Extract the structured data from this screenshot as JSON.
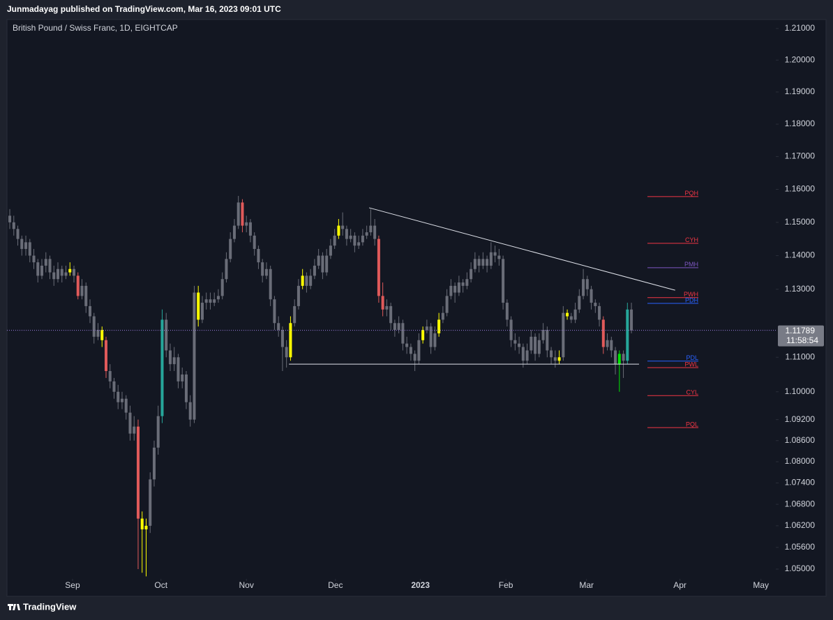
{
  "header": {
    "published": "Junmadayag published on TradingView.com, Mar 16, 2023 09:01 UTC"
  },
  "footer": {
    "brand": "TradingView"
  },
  "chart_data": {
    "type": "candlestick",
    "title": "British Pound / Swiss Franc, 1D, EIGHTCAP",
    "log_scale": true,
    "ylim": [
      1.0477,
      1.2124
    ],
    "yticks": [
      {
        "value": 1.21,
        "label": "1.21000"
      },
      {
        "value": 1.2,
        "label": "1.20000"
      },
      {
        "value": 1.19,
        "label": "1.19000"
      },
      {
        "value": 1.18,
        "label": "1.18000"
      },
      {
        "value": 1.17,
        "label": "1.17000"
      },
      {
        "value": 1.16,
        "label": "1.16000"
      },
      {
        "value": 1.15,
        "label": "1.15000"
      },
      {
        "value": 1.14,
        "label": "1.14000"
      },
      {
        "value": 1.13,
        "label": "1.13000"
      },
      {
        "value": 1.11,
        "label": "1.11000"
      },
      {
        "value": 1.1,
        "label": "1.10000"
      },
      {
        "value": 1.092,
        "label": "1.09200"
      },
      {
        "value": 1.086,
        "label": "1.08600"
      },
      {
        "value": 1.08,
        "label": "1.08000"
      },
      {
        "value": 1.074,
        "label": "1.07400"
      },
      {
        "value": 1.068,
        "label": "1.06800"
      },
      {
        "value": 1.062,
        "label": "1.06200"
      },
      {
        "value": 1.056,
        "label": "1.05600"
      },
      {
        "value": 1.05,
        "label": "1.05000"
      }
    ],
    "xlim": [
      -0.7,
      191
    ],
    "xticks": [
      {
        "value": 15.65,
        "label": "Sep"
      },
      {
        "value": 37.7,
        "label": "Oct"
      },
      {
        "value": 59,
        "label": "Nov"
      },
      {
        "value": 81.2,
        "label": "Dec"
      },
      {
        "value": 102.4,
        "label": "2023"
      },
      {
        "value": 123.7,
        "label": "Feb"
      },
      {
        "value": 143.8,
        "label": "Mar"
      },
      {
        "value": 167.1,
        "label": "Apr"
      },
      {
        "value": 187.3,
        "label": "May"
      }
    ],
    "last_price": 1.11789,
    "last_price_color": "#9c7de0",
    "countdown": "11:58:54",
    "ohlc": [
      [
        1.152,
        1.154,
        1.148,
        1.15
      ],
      [
        1.15,
        1.152,
        1.146,
        1.148
      ],
      [
        1.148,
        1.149,
        1.143,
        1.145
      ],
      [
        1.145,
        1.146,
        1.14,
        1.142
      ],
      [
        1.142,
        1.146,
        1.14,
        1.144
      ],
      [
        1.144,
        1.145,
        1.138,
        1.14
      ],
      [
        1.14,
        1.142,
        1.136,
        1.138
      ],
      [
        1.138,
        1.139,
        1.132,
        1.134
      ],
      [
        1.134,
        1.139,
        1.133,
        1.137
      ],
      [
        1.137,
        1.141,
        1.135,
        1.139
      ],
      [
        1.139,
        1.14,
        1.133,
        1.135
      ],
      [
        1.135,
        1.137,
        1.131,
        1.133
      ],
      [
        1.133,
        1.138,
        1.132,
        1.136
      ],
      [
        1.136,
        1.137,
        1.132,
        1.134
      ],
      [
        1.134,
        1.137,
        1.133,
        1.135
      ],
      [
        1.135,
        1.138,
        1.134,
        1.136
      ],
      [
        1.136,
        1.137,
        1.132,
        1.134
      ],
      [
        1.134,
        1.135,
        1.127,
        1.128
      ],
      [
        1.128,
        1.133,
        1.127,
        1.131
      ],
      [
        1.131,
        1.132,
        1.123,
        1.125
      ],
      [
        1.125,
        1.127,
        1.12,
        1.122
      ],
      [
        1.122,
        1.123,
        1.114,
        1.116
      ],
      [
        1.116,
        1.12,
        1.115,
        1.118
      ],
      [
        1.118,
        1.119,
        1.113,
        1.115
      ],
      [
        1.115,
        1.116,
        1.104,
        1.106
      ],
      [
        1.106,
        1.108,
        1.101,
        1.103
      ],
      [
        1.103,
        1.104,
        1.098,
        1.1
      ],
      [
        1.1,
        1.102,
        1.095,
        1.097
      ],
      [
        1.097,
        1.1,
        1.095,
        1.098
      ],
      [
        1.098,
        1.099,
        1.092,
        1.094
      ],
      [
        1.094,
        1.096,
        1.086,
        1.088
      ],
      [
        1.088,
        1.093,
        1.086,
        1.09
      ],
      [
        1.09,
        1.092,
        1.05,
        1.064
      ],
      [
        1.064,
        1.066,
        1.049,
        1.061
      ],
      [
        1.061,
        1.064,
        1.048,
        1.062
      ],
      [
        1.062,
        1.077,
        1.06,
        1.075
      ],
      [
        1.075,
        1.086,
        1.073,
        1.084
      ],
      [
        1.084,
        1.096,
        1.082,
        1.093
      ],
      [
        1.093,
        1.124,
        1.091,
        1.121
      ],
      [
        1.121,
        1.123,
        1.11,
        1.112
      ],
      [
        1.112,
        1.114,
        1.106,
        1.108
      ],
      [
        1.108,
        1.113,
        1.106,
        1.11
      ],
      [
        1.11,
        1.111,
        1.101,
        1.103
      ],
      [
        1.103,
        1.107,
        1.101,
        1.105
      ],
      [
        1.105,
        1.106,
        1.095,
        1.097
      ],
      [
        1.097,
        1.099,
        1.09,
        1.092
      ],
      [
        1.092,
        1.131,
        1.091,
        1.129
      ],
      [
        1.129,
        1.131,
        1.119,
        1.121
      ],
      [
        1.121,
        1.128,
        1.12,
        1.126
      ],
      [
        1.126,
        1.129,
        1.124,
        1.127
      ],
      [
        1.127,
        1.129,
        1.124,
        1.126
      ],
      [
        1.126,
        1.129,
        1.125,
        1.127
      ],
      [
        1.127,
        1.13,
        1.126,
        1.128
      ],
      [
        1.128,
        1.135,
        1.127,
        1.133
      ],
      [
        1.133,
        1.141,
        1.132,
        1.139
      ],
      [
        1.139,
        1.147,
        1.138,
        1.145
      ],
      [
        1.145,
        1.151,
        1.144,
        1.149
      ],
      [
        1.149,
        1.158,
        1.148,
        1.156
      ],
      [
        1.156,
        1.157,
        1.147,
        1.149
      ],
      [
        1.149,
        1.152,
        1.147,
        1.15
      ],
      [
        1.15,
        1.151,
        1.144,
        1.146
      ],
      [
        1.146,
        1.147,
        1.14,
        1.142
      ],
      [
        1.142,
        1.143,
        1.136,
        1.138
      ],
      [
        1.138,
        1.139,
        1.132,
        1.134
      ],
      [
        1.134,
        1.138,
        1.133,
        1.136
      ],
      [
        1.136,
        1.137,
        1.125,
        1.127
      ],
      [
        1.127,
        1.128,
        1.118,
        1.12
      ],
      [
        1.12,
        1.122,
        1.116,
        1.118
      ],
      [
        1.118,
        1.119,
        1.106,
        1.113
      ],
      [
        1.113,
        1.115,
        1.107,
        1.11
      ],
      [
        1.11,
        1.122,
        1.109,
        1.12
      ],
      [
        1.12,
        1.127,
        1.119,
        1.125
      ],
      [
        1.125,
        1.133,
        1.124,
        1.131
      ],
      [
        1.131,
        1.136,
        1.13,
        1.134
      ],
      [
        1.134,
        1.135,
        1.129,
        1.131
      ],
      [
        1.131,
        1.136,
        1.13,
        1.134
      ],
      [
        1.134,
        1.139,
        1.133,
        1.137
      ],
      [
        1.137,
        1.142,
        1.136,
        1.14
      ],
      [
        1.14,
        1.141,
        1.133,
        1.135
      ],
      [
        1.135,
        1.142,
        1.134,
        1.14
      ],
      [
        1.14,
        1.145,
        1.139,
        1.143
      ],
      [
        1.143,
        1.148,
        1.142,
        1.146
      ],
      [
        1.146,
        1.151,
        1.145,
        1.149
      ],
      [
        1.149,
        1.153,
        1.146,
        1.148
      ],
      [
        1.148,
        1.149,
        1.143,
        1.145
      ],
      [
        1.145,
        1.148,
        1.144,
        1.146
      ],
      [
        1.146,
        1.147,
        1.141,
        1.143
      ],
      [
        1.143,
        1.146,
        1.142,
        1.144
      ],
      [
        1.144,
        1.148,
        1.143,
        1.146
      ],
      [
        1.146,
        1.149,
        1.145,
        1.147
      ],
      [
        1.147,
        1.154,
        1.146,
        1.149
      ],
      [
        1.149,
        1.151,
        1.143,
        1.145
      ],
      [
        1.145,
        1.146,
        1.126,
        1.128
      ],
      [
        1.128,
        1.132,
        1.122,
        1.124
      ],
      [
        1.124,
        1.127,
        1.122,
        1.125
      ],
      [
        1.125,
        1.126,
        1.118,
        1.12
      ],
      [
        1.12,
        1.121,
        1.116,
        1.118
      ],
      [
        1.118,
        1.122,
        1.117,
        1.12
      ],
      [
        1.12,
        1.121,
        1.112,
        1.114
      ],
      [
        1.114,
        1.116,
        1.111,
        1.113
      ],
      [
        1.113,
        1.114,
        1.109,
        1.111
      ],
      [
        1.111,
        1.112,
        1.106,
        1.109
      ],
      [
        1.109,
        1.117,
        1.108,
        1.115
      ],
      [
        1.115,
        1.119,
        1.114,
        1.118
      ],
      [
        1.118,
        1.121,
        1.117,
        1.119
      ],
      [
        1.119,
        1.12,
        1.111,
        1.113
      ],
      [
        1.113,
        1.119,
        1.112,
        1.117
      ],
      [
        1.117,
        1.123,
        1.116,
        1.121
      ],
      [
        1.121,
        1.125,
        1.12,
        1.123
      ],
      [
        1.123,
        1.13,
        1.122,
        1.128
      ],
      [
        1.128,
        1.133,
        1.127,
        1.131
      ],
      [
        1.131,
        1.132,
        1.126,
        1.129
      ],
      [
        1.129,
        1.134,
        1.128,
        1.132
      ],
      [
        1.132,
        1.133,
        1.129,
        1.131
      ],
      [
        1.131,
        1.135,
        1.13,
        1.133
      ],
      [
        1.133,
        1.138,
        1.132,
        1.136
      ],
      [
        1.136,
        1.141,
        1.135,
        1.139
      ],
      [
        1.139,
        1.14,
        1.135,
        1.137
      ],
      [
        1.137,
        1.141,
        1.136,
        1.139
      ],
      [
        1.139,
        1.14,
        1.135,
        1.137
      ],
      [
        1.137,
        1.144,
        1.136,
        1.141
      ],
      [
        1.141,
        1.143,
        1.138,
        1.14
      ],
      [
        1.14,
        1.142,
        1.137,
        1.139
      ],
      [
        1.139,
        1.14,
        1.124,
        1.126
      ],
      [
        1.126,
        1.127,
        1.119,
        1.121
      ],
      [
        1.121,
        1.122,
        1.113,
        1.115
      ],
      [
        1.115,
        1.117,
        1.112,
        1.114
      ],
      [
        1.114,
        1.116,
        1.111,
        1.113
      ],
      [
        1.113,
        1.114,
        1.107,
        1.109
      ],
      [
        1.109,
        1.114,
        1.108,
        1.112
      ],
      [
        1.112,
        1.118,
        1.111,
        1.116
      ],
      [
        1.116,
        1.117,
        1.109,
        1.111
      ],
      [
        1.111,
        1.117,
        1.11,
        1.115
      ],
      [
        1.115,
        1.12,
        1.114,
        1.118
      ],
      [
        1.118,
        1.119,
        1.11,
        1.112
      ],
      [
        1.112,
        1.113,
        1.108,
        1.11
      ],
      [
        1.11,
        1.112,
        1.107,
        1.109
      ],
      [
        1.109,
        1.112,
        1.108,
        1.11
      ],
      [
        1.11,
        1.125,
        1.109,
        1.123
      ],
      [
        1.123,
        1.124,
        1.121,
        1.122
      ],
      [
        1.122,
        1.123,
        1.12,
        1.121
      ],
      [
        1.121,
        1.126,
        1.12,
        1.124
      ],
      [
        1.124,
        1.13,
        1.123,
        1.128
      ],
      [
        1.128,
        1.136,
        1.127,
        1.133
      ],
      [
        1.133,
        1.134,
        1.128,
        1.13
      ],
      [
        1.13,
        1.131,
        1.124,
        1.126
      ],
      [
        1.126,
        1.127,
        1.123,
        1.125
      ],
      [
        1.125,
        1.126,
        1.119,
        1.121
      ],
      [
        1.121,
        1.122,
        1.111,
        1.113
      ],
      [
        1.113,
        1.117,
        1.112,
        1.115
      ],
      [
        1.115,
        1.116,
        1.11,
        1.112
      ],
      [
        1.112,
        1.113,
        1.105,
        1.108
      ],
      [
        1.108,
        1.112,
        1.1,
        1.111
      ],
      [
        1.111,
        1.112,
        1.104,
        1.109
      ],
      [
        1.109,
        1.126,
        1.108,
        1.124
      ],
      [
        1.124,
        1.126,
        1.117,
        1.11789
      ]
    ],
    "colors": [
      "#6a6d78",
      "#6a6d78",
      "#6a6d78",
      "#6a6d78",
      "#6a6d78",
      "#6a6d78",
      "#6a6d78",
      "#6a6d78",
      "#6a6d78",
      "#6a6d78",
      "#6a6d78",
      "#6a6d78",
      "#6a6d78",
      "#6a6d78",
      "#6a6d78",
      "#ffff00",
      "#6a6d78",
      "#e05a5a",
      "#6a6d78",
      "#6a6d78",
      "#6a6d78",
      "#6a6d78",
      "#6a6d78",
      "#ffff00",
      "#e05a5a",
      "#6a6d78",
      "#6a6d78",
      "#6a6d78",
      "#6a6d78",
      "#6a6d78",
      "#6a6d78",
      "#6a6d78",
      "#e05a5a",
      "#ffff00",
      "#ffff00",
      "#6a6d78",
      "#6a6d78",
      "#6a6d78",
      "#26a69a",
      "#6a6d78",
      "#6a6d78",
      "#6a6d78",
      "#6a6d78",
      "#6a6d78",
      "#6a6d78",
      "#6a6d78",
      "#6a6d78",
      "#ffff00",
      "#6a6d78",
      "#6a6d78",
      "#6a6d78",
      "#6a6d78",
      "#6a6d78",
      "#6a6d78",
      "#6a6d78",
      "#6a6d78",
      "#6a6d78",
      "#6a6d78",
      "#e05a5a",
      "#6a6d78",
      "#6a6d78",
      "#6a6d78",
      "#6a6d78",
      "#6a6d78",
      "#6a6d78",
      "#6a6d78",
      "#6a6d78",
      "#6a6d78",
      "#6a6d78",
      "#6a6d78",
      "#ffff00",
      "#6a6d78",
      "#6a6d78",
      "#ffff00",
      "#6a6d78",
      "#6a6d78",
      "#6a6d78",
      "#6a6d78",
      "#6a6d78",
      "#6a6d78",
      "#6a6d78",
      "#6a6d78",
      "#ffff00",
      "#6a6d78",
      "#6a6d78",
      "#6a6d78",
      "#6a6d78",
      "#6a6d78",
      "#6a6d78",
      "#6a6d78",
      "#6a6d78",
      "#6a6d78",
      "#e05a5a",
      "#e05a5a",
      "#6a6d78",
      "#6a6d78",
      "#6a6d78",
      "#6a6d78",
      "#6a6d78",
      "#6a6d78",
      "#6a6d78",
      "#6a6d78",
      "#6a6d78",
      "#ffff00",
      "#6a6d78",
      "#6a6d78",
      "#6a6d78",
      "#ffff00",
      "#6a6d78",
      "#6a6d78",
      "#6a6d78",
      "#6a6d78",
      "#6a6d78",
      "#6a6d78",
      "#6a6d78",
      "#6a6d78",
      "#6a6d78",
      "#6a6d78",
      "#6a6d78",
      "#6a6d78",
      "#6a6d78",
      "#6a6d78",
      "#6a6d78",
      "#6a6d78",
      "#6a6d78",
      "#6a6d78",
      "#6a6d78",
      "#6a6d78",
      "#6a6d78",
      "#6a6d78",
      "#6a6d78",
      "#6a6d78",
      "#6a6d78",
      "#6a6d78",
      "#6a6d78",
      "#6a6d78",
      "#6a6d78",
      "#ffff00",
      "#6a6d78",
      "#ffff00",
      "#6a6d78",
      "#6a6d78",
      "#6a6d78",
      "#6a6d78",
      "#6a6d78",
      "#6a6d78",
      "#6a6d78",
      "#6a6d78",
      "#e05a5a",
      "#6a6d78",
      "#6a6d78",
      "#6a6d78",
      "#00e600",
      "#6a6d78",
      "#26a69a",
      "#6a6d78"
    ],
    "trendlines": [
      {
        "x": [
          89.6,
          165.9
        ],
        "y": [
          1.1544,
          1.1297
        ],
        "color": "#e0e3eb"
      },
      {
        "x": [
          69.6,
          156.9
        ],
        "y": [
          1.108,
          1.108
        ],
        "color": "#e0e3eb"
      }
    ],
    "levels": [
      {
        "name": "PQH",
        "value": 1.1578,
        "color": "#f23645"
      },
      {
        "name": "CYH",
        "value": 1.1437,
        "color": "#f23645"
      },
      {
        "name": "PMH",
        "value": 1.1364,
        "color": "#7e57c2"
      },
      {
        "name": "PWH",
        "value": 1.1275,
        "color": "#f23645"
      },
      {
        "name": "PDH",
        "value": 1.1258,
        "color": "#2962ff"
      },
      {
        "name": "PDL",
        "value": 1.1089,
        "color": "#2962ff"
      },
      {
        "name": "PWL",
        "value": 1.107,
        "color": "#f23645"
      },
      {
        "name": "CYL",
        "value": 1.0989,
        "color": "#f23645"
      },
      {
        "name": "PQL",
        "value": 1.0897,
        "color": "#f23645"
      }
    ]
  }
}
